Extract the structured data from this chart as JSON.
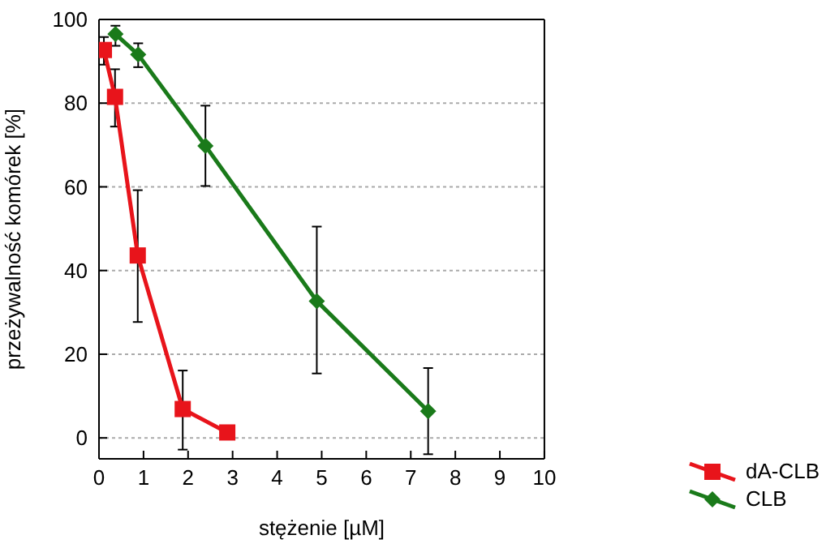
{
  "chart_data": {
    "type": "line",
    "xlabel": "stężenie [µM]",
    "ylabel": "przeżywalność komórek [%]",
    "xlim": [
      0,
      10
    ],
    "xticks": [
      0,
      1,
      2,
      3,
      4,
      5,
      6,
      7,
      8,
      9,
      10
    ],
    "ylim": [
      -5,
      100
    ],
    "yticks": [
      0,
      20,
      40,
      60,
      80,
      100
    ],
    "grid": "y",
    "legend": "bottom right",
    "series": [
      {
        "name": "dA-CLB",
        "color": "#e8141b",
        "marker": "square",
        "x": [
          0.11,
          0.36,
          0.87,
          1.88,
          2.88
        ],
        "values": [
          92.7,
          81.5,
          43.6,
          6.9,
          1.3
        ],
        "errors": [
          [
            89.2,
            95.8
          ],
          [
            74.4,
            88.1
          ],
          [
            27.7,
            59.2
          ],
          [
            -2.8,
            16.1
          ],
          null
        ]
      },
      {
        "name": "CLB",
        "color": "#1a7a1a",
        "marker": "diamond",
        "x": [
          0.37,
          0.88,
          2.39,
          4.89,
          7.39
        ],
        "values": [
          96.5,
          91.6,
          69.8,
          32.7,
          6.4
        ],
        "errors": [
          [
            93.7,
            98.5
          ],
          [
            88.6,
            94.3
          ],
          [
            60.2,
            79.4
          ],
          [
            15.4,
            50.5
          ],
          [
            -3.9,
            16.7
          ]
        ]
      }
    ]
  }
}
